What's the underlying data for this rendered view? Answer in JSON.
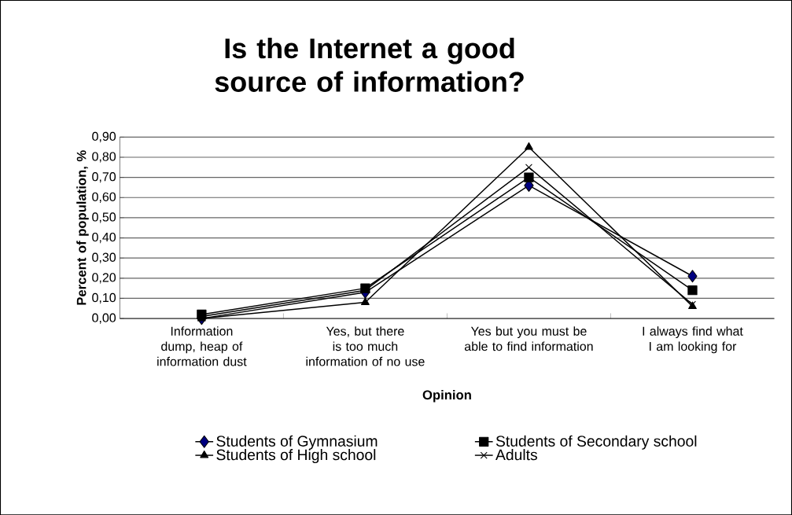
{
  "chart_data": {
    "type": "line",
    "title": "Is the Internet a good source of information?",
    "xlabel": "Opinion",
    "ylabel": "Percent of population, %",
    "categories": [
      "Information dump, heap of information dust",
      "Yes, but there is too much information of no use",
      "Yes but you must be able to find information",
      "I always find what I am looking for"
    ],
    "series": [
      {
        "name": "Students of Gymnasium",
        "color": "#000080",
        "marker": "diamond",
        "values": [
          0.0,
          0.13,
          0.66,
          0.21
        ]
      },
      {
        "name": "Students of Secondary school",
        "color": "#000000",
        "marker": "square",
        "values": [
          0.02,
          0.15,
          0.7,
          0.14
        ]
      },
      {
        "name": "Students of High school",
        "color": "#000000",
        "marker": "triangle",
        "values": [
          0.0,
          0.08,
          0.85,
          0.06
        ]
      },
      {
        "name": "Adults",
        "color": "#000000",
        "marker": "cross",
        "values": [
          0.01,
          0.14,
          0.75,
          0.07
        ]
      }
    ],
    "ylim": [
      0,
      0.9
    ],
    "yticks": [
      {
        "value": 0,
        "label": "0,00"
      },
      {
        "value": 0.1,
        "label": "0,10"
      },
      {
        "value": 0.2,
        "label": "0,20"
      },
      {
        "value": 0.3,
        "label": "0,30"
      },
      {
        "value": 0.4,
        "label": "0,40"
      },
      {
        "value": 0.5,
        "label": "0,50"
      },
      {
        "value": 0.6,
        "label": "0,60"
      },
      {
        "value": 0.7,
        "label": "0,70"
      },
      {
        "value": 0.8,
        "label": "0,80"
      },
      {
        "value": 0.9,
        "label": "0,90"
      }
    ],
    "grid": "y",
    "legend": "bottom",
    "line_style": "solid"
  }
}
